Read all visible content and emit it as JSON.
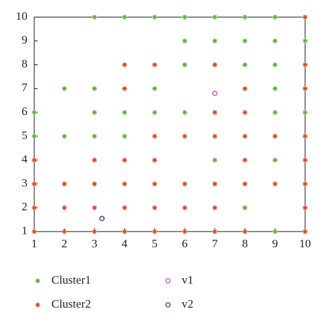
{
  "chart_data": {
    "type": "scatter",
    "xlim": [
      1,
      10
    ],
    "ylim": [
      1,
      10
    ],
    "xticks": [
      1,
      2,
      3,
      4,
      5,
      6,
      7,
      8,
      9,
      10
    ],
    "yticks": [
      1,
      2,
      3,
      4,
      5,
      6,
      7,
      8,
      9,
      10
    ],
    "series": [
      {
        "name": "Cluster1",
        "color": "#5cae3c",
        "marker": "asterisk",
        "x": [
          3,
          4,
          5,
          6,
          7,
          8,
          9,
          6,
          7,
          8,
          9,
          10,
          6,
          8,
          9,
          2,
          3,
          5,
          9,
          1,
          3,
          4,
          5,
          6,
          9,
          10,
          1,
          2,
          3,
          4,
          7,
          9,
          8,
          9
        ],
        "y": [
          10,
          10,
          10,
          10,
          10,
          10,
          10,
          9,
          9,
          9,
          9,
          9,
          8,
          8,
          8,
          7,
          7,
          7,
          7,
          6,
          6,
          6,
          6,
          6,
          6,
          6,
          5,
          5,
          5,
          5,
          4,
          4,
          2,
          1
        ]
      },
      {
        "name": "Cluster2",
        "color": "#e0431e",
        "marker": "asterisk",
        "x": [
          10,
          4,
          5,
          7,
          10,
          4,
          8,
          10,
          7,
          8,
          5,
          6,
          7,
          8,
          9,
          10,
          1,
          3,
          4,
          5,
          8,
          10,
          1,
          2,
          3,
          4,
          5,
          6,
          7,
          8,
          9,
          10,
          1,
          2,
          3,
          4,
          5,
          6,
          7,
          10,
          1,
          2,
          3,
          4,
          5,
          6,
          7,
          8,
          10
        ],
        "y": [
          10,
          8,
          8,
          8,
          8,
          7,
          7,
          7,
          6,
          6,
          5,
          5,
          5,
          5,
          5,
          5,
          4,
          4,
          4,
          4,
          4,
          4,
          3,
          3,
          3,
          3,
          3,
          3,
          3,
          3,
          3,
          3,
          2,
          2,
          2,
          2,
          2,
          2,
          2,
          2,
          1,
          1,
          1,
          1,
          1,
          1,
          1,
          1,
          1
        ]
      },
      {
        "name": "v1",
        "color": "#c040c0",
        "marker": "circle",
        "x": [
          7
        ],
        "y": [
          6.8
        ]
      },
      {
        "name": "v2",
        "color": "#1c1c80",
        "marker": "circle",
        "x": [
          3.25
        ],
        "y": [
          1.55
        ]
      }
    ]
  }
}
